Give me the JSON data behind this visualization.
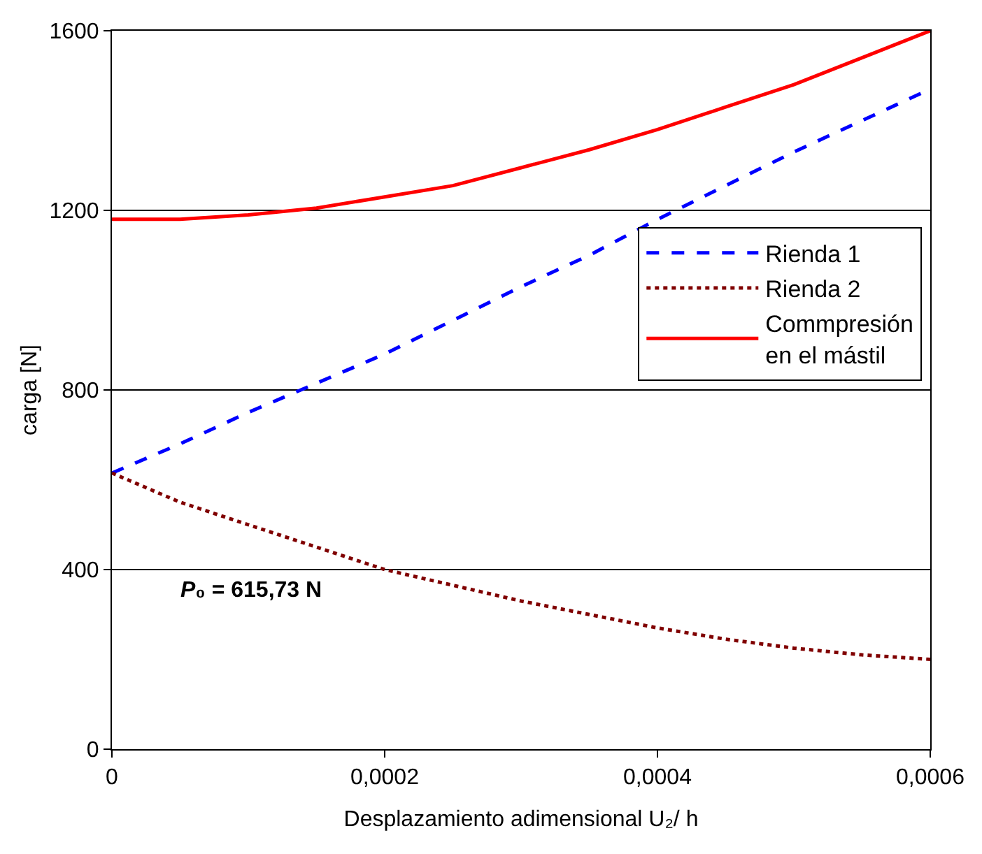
{
  "chart_data": {
    "type": "line",
    "xlabel": "Desplazamiento adimensional U₂/ h",
    "ylabel": "carga [N]",
    "x": [
      0,
      5e-05,
      0.0001,
      0.00015,
      0.0002,
      0.00025,
      0.0003,
      0.00035,
      0.0004,
      0.00045,
      0.0005,
      0.00055,
      0.0006
    ],
    "series": [
      {
        "name": "Rienda 1",
        "color": "#0000ff",
        "line_style": "dashed",
        "values": [
          615,
          680,
          750,
          815,
          880,
          955,
          1030,
          1100,
          1180,
          1255,
          1330,
          1400,
          1470
        ]
      },
      {
        "name": "Rienda 2",
        "color": "#800000",
        "line_style": "dotted",
        "values": [
          615,
          550,
          500,
          450,
          400,
          365,
          330,
          300,
          270,
          245,
          225,
          210,
          200
        ]
      },
      {
        "name": "Commpresión\nen el mástil",
        "color": "#ff0000",
        "line_style": "solid",
        "values": [
          1180,
          1180,
          1190,
          1205,
          1230,
          1255,
          1295,
          1335,
          1380,
          1430,
          1480,
          1540,
          1600
        ]
      }
    ],
    "xlim": [
      0,
      0.0006
    ],
    "xticks": [
      0,
      {
        "value": 0.0002,
        "label": "0,0002"
      },
      {
        "value": 0.0004,
        "label": "0,0004"
      },
      {
        "value": 0.0006,
        "label": "0,0006"
      }
    ],
    "ylim": [
      0,
      1600
    ],
    "yticks": [
      0,
      400,
      800,
      1200,
      1600
    ],
    "grid": "y",
    "legend": "right",
    "marker": "none",
    "annotations": [
      "P₀ = 615,73 N"
    ]
  }
}
